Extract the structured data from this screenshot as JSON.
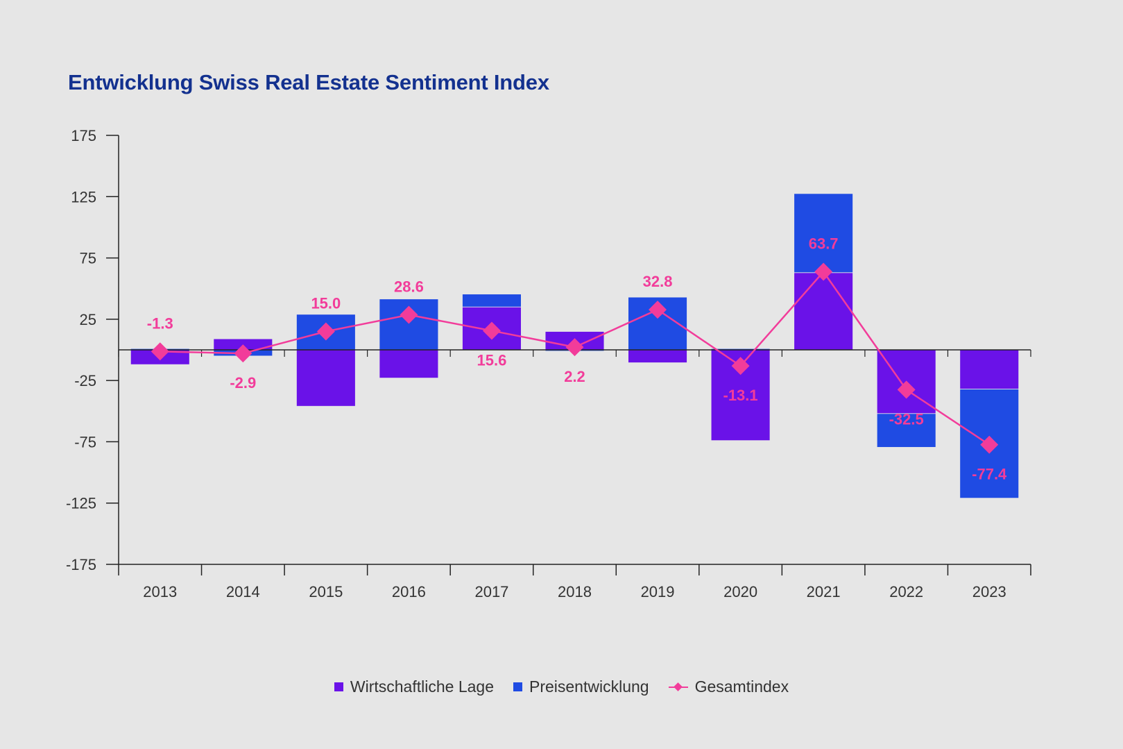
{
  "title": "Entwicklung Swiss Real Estate Sentiment Index",
  "colors": {
    "wirtschaft": "#6a12e8",
    "preis": "#1f4be3",
    "gesamt": "#f23c9a",
    "axis": "#222222",
    "tick_text": "#333333"
  },
  "legend": [
    {
      "label": "Wirtschaftliche Lage",
      "type": "square",
      "color_key": "wirtschaft"
    },
    {
      "label": "Preisentwicklung",
      "type": "square",
      "color_key": "preis"
    },
    {
      "label": "Gesamtindex",
      "type": "line-marker",
      "color_key": "gesamt"
    }
  ],
  "chart_data": {
    "type": "bar",
    "subtype": "stacked-bar-with-line",
    "title": "Entwicklung Swiss Real Estate Sentiment Index",
    "xlabel": "",
    "ylabel": "",
    "categories": [
      "2013",
      "2014",
      "2015",
      "2016",
      "2017",
      "2018",
      "2019",
      "2020",
      "2021",
      "2022",
      "2023"
    ],
    "ylim": [
      -175,
      175
    ],
    "yticks": [
      175,
      125,
      75,
      25,
      -25,
      -75,
      -125,
      -175
    ],
    "grid": false,
    "legend_position": "bottom-center",
    "series": [
      {
        "name": "Wirtschaftliche Lage",
        "type": "bar",
        "values": [
          -12,
          9,
          -46,
          -23,
          35,
          15,
          -10.5,
          -74,
          63,
          -52,
          -32
        ]
      },
      {
        "name": "Preisentwicklung",
        "type": "bar",
        "values": [
          1,
          -5,
          29,
          41.5,
          10.5,
          -1,
          43,
          1,
          64.5,
          -27.5,
          -89
        ]
      },
      {
        "name": "Gesamtindex",
        "type": "line",
        "values": [
          -1.3,
          -2.9,
          15.0,
          28.6,
          15.6,
          2.2,
          32.8,
          -13.1,
          63.7,
          -32.5,
          -77.4
        ],
        "labels": [
          "-1.3",
          "-2.9",
          "15.0",
          "28.6",
          "15.6",
          "2.2",
          "32.8",
          "-13.1",
          "63.7",
          "-32.5",
          "-77.4"
        ],
        "label_side": [
          "above",
          "below",
          "above",
          "above",
          "below",
          "below",
          "above",
          "below",
          "above",
          "below",
          "below"
        ]
      }
    ]
  }
}
